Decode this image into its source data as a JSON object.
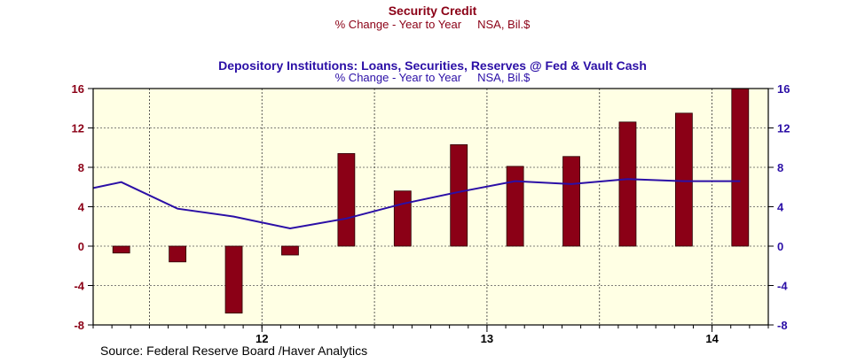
{
  "chart_data": {
    "type": "bar",
    "title": "Security Credit",
    "subtitle": "% Change - Year to Year     NSA, Bil.$",
    "title2": "Depository Institutions: Loans, Securities, Reserves @ Fed & Vault Cash",
    "subtitle2": "% Change - Year to Year     NSA, Bil.$",
    "source": "Source:  Federal Reserve Board /Haver Analytics",
    "ylim": [
      -8,
      16
    ],
    "y_ticks": [
      "16",
      "12",
      "8",
      "4",
      "0",
      "-4",
      "-8"
    ],
    "y_tick_values": [
      16,
      12,
      8,
      4,
      0,
      -4,
      -8
    ],
    "x_labels": [
      "12",
      "13",
      "14"
    ],
    "x_range": [
      0,
      12
    ],
    "x_label_positions": [
      3,
      7,
      11
    ],
    "x_grid_positions": [
      1,
      3,
      5,
      7,
      9,
      11
    ],
    "bars": {
      "x": [
        0.5,
        1.5,
        2.5,
        3.5,
        4.5,
        5.5,
        6.5,
        7.5,
        8.5,
        9.5,
        10.5,
        11.5
      ],
      "values": [
        -0.7,
        -1.6,
        -6.8,
        -0.9,
        9.4,
        5.6,
        10.3,
        8.1,
        9.1,
        12.6,
        13.5,
        16.0
      ],
      "color": "#8b0016"
    },
    "line": {
      "x": [
        0,
        0.5,
        1.5,
        2.5,
        3.5,
        4.5,
        5.5,
        6.5,
        7.5,
        8.5,
        9.5,
        10.5,
        11.5
      ],
      "values": [
        5.9,
        6.5,
        3.8,
        3.0,
        1.8,
        2.8,
        4.3,
        5.5,
        6.6,
        6.3,
        6.8,
        6.6,
        6.6
      ],
      "color": "#2b0fa6"
    },
    "plot_background": "#ffffe4",
    "grid": true,
    "legend": "none"
  }
}
